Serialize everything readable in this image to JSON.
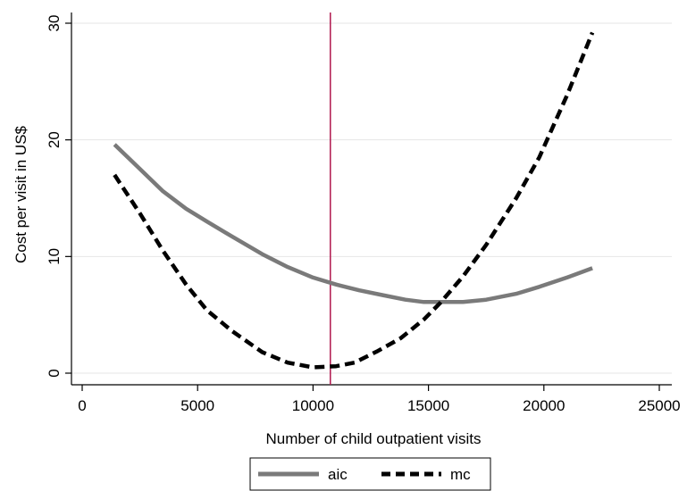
{
  "chart_data": {
    "type": "line",
    "xlabel": "Number of child outpatient visits",
    "ylabel": "Cost per visit in US$",
    "xlim": [
      0,
      25000
    ],
    "ylim": [
      0,
      30
    ],
    "xticks": [
      0,
      5000,
      10000,
      15000,
      20000,
      25000
    ],
    "yticks": [
      0,
      10,
      20,
      30
    ],
    "grid": "horizontal",
    "legend_position": "bottom",
    "reference_line": {
      "x": 10750,
      "color": "#b0174e"
    },
    "series": [
      {
        "name": "aic",
        "style": "solid",
        "color": "#7a7a7a",
        "x": [
          1400,
          2400,
          3500,
          4500,
          5400,
          6500,
          7800,
          8900,
          10000,
          11000,
          12000,
          13000,
          14000,
          14800,
          15500,
          16500,
          17500,
          18800,
          19800,
          21000,
          22100
        ],
        "y": [
          19.6,
          17.7,
          15.6,
          14.1,
          13.0,
          11.7,
          10.2,
          9.1,
          8.2,
          7.6,
          7.1,
          6.7,
          6.3,
          6.1,
          6.1,
          6.1,
          6.3,
          6.8,
          7.4,
          8.2,
          9.0
        ]
      },
      {
        "name": "mc",
        "style": "dashed",
        "color": "#000000",
        "x": [
          1400,
          2500,
          3500,
          4500,
          5400,
          6500,
          7800,
          8900,
          10000,
          11000,
          11800,
          12800,
          13800,
          14800,
          15500,
          16500,
          17500,
          18800,
          19800,
          21000,
          22100
        ],
        "y": [
          17.0,
          13.7,
          10.5,
          7.6,
          5.4,
          3.6,
          1.8,
          0.9,
          0.5,
          0.6,
          0.9,
          1.9,
          3.0,
          4.6,
          6.0,
          8.3,
          11.0,
          15.0,
          18.5,
          23.8,
          29.2
        ]
      }
    ]
  }
}
